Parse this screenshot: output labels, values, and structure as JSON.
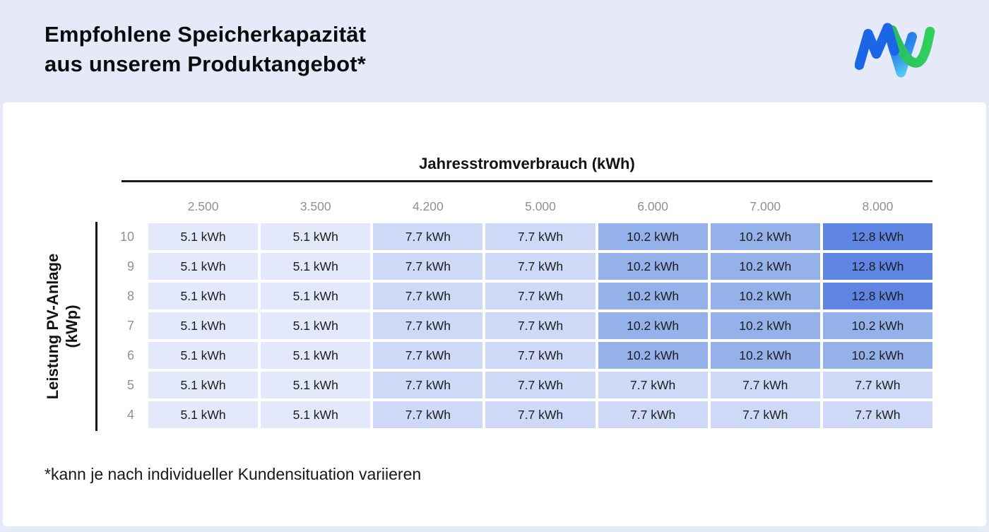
{
  "header": {
    "title_line1": "Empfohlene Speicherkapazität",
    "title_line2": "aus unserem Produktangebot*",
    "logo": "mvv-logo",
    "logo_colors": {
      "blue": "#1b66e6",
      "cyan": "#5ed0f5",
      "green": "#2fc85c"
    }
  },
  "table": {
    "x_axis_title": "Jahresstromverbrauch (kWh)",
    "y_axis_title_line1": "Leistung PV-Anlage",
    "y_axis_title_line2": "(kWp)",
    "columns": [
      "2.500",
      "3.500",
      "4.200",
      "5.000",
      "6.000",
      "7.000",
      "8.000"
    ],
    "rows": [
      {
        "label": "10",
        "values": [
          "5.1 kWh",
          "5.1 kWh",
          "7.7 kWh",
          "7.7 kWh",
          "10.2 kWh",
          "10.2 kWh",
          "12.8 kWh"
        ]
      },
      {
        "label": "9",
        "values": [
          "5.1 kWh",
          "5.1 kWh",
          "7.7 kWh",
          "7.7 kWh",
          "10.2 kWh",
          "10.2 kWh",
          "12.8 kWh"
        ]
      },
      {
        "label": "8",
        "values": [
          "5.1 kWh",
          "5.1 kWh",
          "7.7 kWh",
          "7.7 kWh",
          "10.2 kWh",
          "10.2 kWh",
          "12.8 kWh"
        ]
      },
      {
        "label": "7",
        "values": [
          "5.1 kWh",
          "5.1 kWh",
          "7.7 kWh",
          "7.7 kWh",
          "10.2 kWh",
          "10.2 kWh",
          "10.2 kWh"
        ]
      },
      {
        "label": "6",
        "values": [
          "5.1 kWh",
          "5.1 kWh",
          "7.7 kWh",
          "7.7 kWh",
          "10.2 kWh",
          "10.2 kWh",
          "10.2 kWh"
        ]
      },
      {
        "label": "5",
        "values": [
          "5.1 kWh",
          "5.1 kWh",
          "7.7 kWh",
          "7.7 kWh",
          "7.7 kWh",
          "7.7 kWh",
          "7.7 kWh"
        ]
      },
      {
        "label": "4",
        "values": [
          "5.1 kWh",
          "5.1 kWh",
          "7.7 kWh",
          "7.7 kWh",
          "7.7 kWh",
          "7.7 kWh",
          "7.7 kWh"
        ]
      }
    ],
    "value_colors": {
      "5.1 kWh": "#e3e9fa",
      "7.7 kWh": "#cdd9f6",
      "10.2 kWh": "#94b1ea",
      "12.8 kWh": "#5e85e2"
    }
  },
  "footnote": "*kann je nach individueller Kundensituation variieren",
  "chart_data": {
    "type": "heatmap",
    "title": "Empfohlene Speicherkapazität aus unserem Produktangebot*",
    "xlabel": "Jahresstromverbrauch (kWh)",
    "ylabel": "Leistung PV-Anlage (kWp)",
    "x_categories": [
      "2.500",
      "3.500",
      "4.200",
      "5.000",
      "6.000",
      "7.000",
      "8.000"
    ],
    "y_categories": [
      "10",
      "9",
      "8",
      "7",
      "6",
      "5",
      "4"
    ],
    "unit": "kWh",
    "values": [
      [
        5.1,
        5.1,
        7.7,
        7.7,
        10.2,
        10.2,
        12.8
      ],
      [
        5.1,
        5.1,
        7.7,
        7.7,
        10.2,
        10.2,
        12.8
      ],
      [
        5.1,
        5.1,
        7.7,
        7.7,
        10.2,
        10.2,
        12.8
      ],
      [
        5.1,
        5.1,
        7.7,
        7.7,
        10.2,
        10.2,
        10.2
      ],
      [
        5.1,
        5.1,
        7.7,
        7.7,
        10.2,
        10.2,
        10.2
      ],
      [
        5.1,
        5.1,
        7.7,
        7.7,
        7.7,
        7.7,
        7.7
      ],
      [
        5.1,
        5.1,
        7.7,
        7.7,
        7.7,
        7.7,
        7.7
      ]
    ],
    "color_scale": {
      "5.1": "#e3e9fa",
      "7.7": "#cdd9f6",
      "10.2": "#94b1ea",
      "12.8": "#5e85e2"
    },
    "grid": false,
    "legend": "none",
    "annotations": [
      "*kann je nach individueller Kundensituation variieren"
    ]
  }
}
